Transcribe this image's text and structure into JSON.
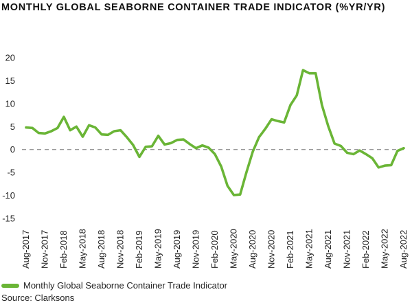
{
  "chart_data": {
    "type": "line",
    "title": "MONTHLY GLOBAL SEABORNE CONTAINER TRADE INDICATOR (%YR/YR)",
    "xlabel": "",
    "ylabel": "",
    "ylim": [
      -15,
      20
    ],
    "yticks": [
      20,
      15,
      10,
      5,
      0,
      -5,
      -10,
      -15
    ],
    "x": [
      "Aug-2017",
      "Sep-2017",
      "Oct-2017",
      "Nov-2017",
      "Dec-2017",
      "Jan-2018",
      "Feb-2018",
      "Mar-2018",
      "Apr-2018",
      "May-2018",
      "Jun-2018",
      "Jul-2018",
      "Aug-2018",
      "Sep-2018",
      "Oct-2018",
      "Nov-2018",
      "Dec-2018",
      "Jan-2019",
      "Feb-2019",
      "Mar-2019",
      "Apr-2019",
      "May-2019",
      "Jun-2019",
      "Jul-2019",
      "Aug-2019",
      "Sep-2019",
      "Oct-2019",
      "Nov-2019",
      "Dec-2019",
      "Jan-2020",
      "Feb-2020",
      "Mar-2020",
      "Apr-2020",
      "May-2020",
      "Jun-2020",
      "Jul-2020",
      "Aug-2020",
      "Sep-2020",
      "Oct-2020",
      "Nov-2020",
      "Dec-2020",
      "Jan-2021",
      "Feb-2021",
      "Mar-2021",
      "Apr-2021",
      "May-2021",
      "Jun-2021",
      "Jul-2021",
      "Aug-2021",
      "Sep-2021",
      "Oct-2021",
      "Nov-2021",
      "Dec-2021",
      "Jan-2022",
      "Feb-2022",
      "Mar-2022",
      "Apr-2022",
      "May-2022",
      "Jun-2022",
      "Jul-2022",
      "Aug-2022"
    ],
    "tick_labels": [
      "Aug-2017",
      "Nov-2017",
      "Feb-2018",
      "May-2018",
      "Aug-2018",
      "Nov-2018",
      "Feb-2019",
      "May-2019",
      "Aug-2019",
      "Nov-2019",
      "Feb-2020",
      "May-2020",
      "Aug-2020",
      "Nov-2020",
      "Feb-2021",
      "May-2021",
      "Aug-2021",
      "Nov-2021",
      "Feb-2022",
      "May-2022",
      "Aug-2022"
    ],
    "series": [
      {
        "name": "Monthly Global Seaborne Container Trade Indicator",
        "color": "#6ab536",
        "values": [
          4.8,
          4.7,
          3.6,
          3.5,
          4.0,
          4.7,
          7.1,
          4.2,
          5.0,
          2.8,
          5.3,
          4.8,
          3.3,
          3.2,
          4.0,
          4.2,
          2.7,
          1.0,
          -1.6,
          0.6,
          0.7,
          3.0,
          1.1,
          1.4,
          2.1,
          2.2,
          1.2,
          0.3,
          0.9,
          0.4,
          -1.0,
          -3.7,
          -7.9,
          -9.9,
          -9.8,
          -5.0,
          -0.5,
          2.7,
          4.5,
          6.6,
          6.2,
          5.9,
          9.7,
          11.8,
          17.3,
          16.6,
          16.6,
          9.7,
          5.1,
          1.3,
          0.8,
          -0.7,
          -1.0,
          -0.2,
          -1.0,
          -1.9,
          -3.9,
          -3.5,
          -3.4,
          -0.3,
          0.3
        ]
      }
    ]
  },
  "legend": {
    "label": "Monthly Global Seaborne Container Trade Indicator"
  },
  "source": "Source: Clarksons",
  "colors": {
    "series": "#6ab536",
    "zero_line": "#777777"
  }
}
